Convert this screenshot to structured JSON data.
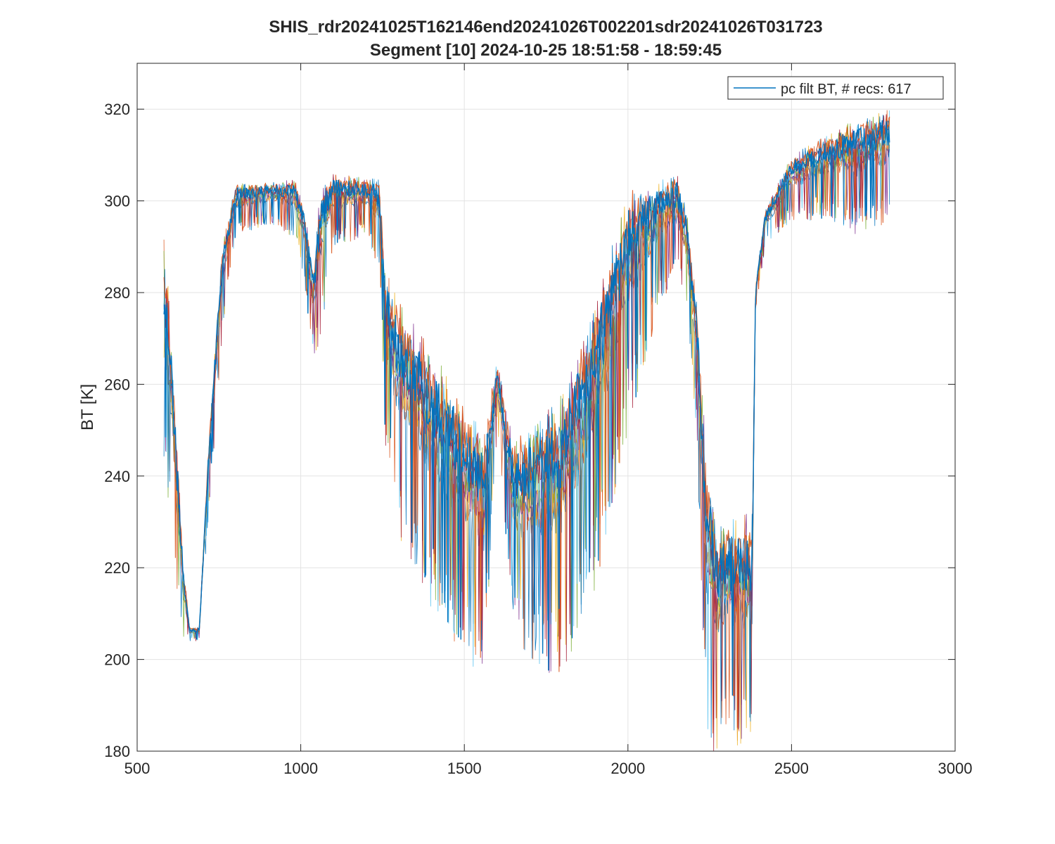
{
  "chart_data": {
    "type": "line",
    "title": "SHIS_rdr20241025T162146end20241026T002201sdr20241026T031723",
    "subtitle": "Segment [10] 2024-10-25 18:51:58 - 18:59:45",
    "xlabel": "",
    "ylabel": "BT [K]",
    "xlim": [
      500,
      3000
    ],
    "ylim": [
      180,
      330
    ],
    "xticks": [
      "500",
      "1000",
      "1500",
      "2000",
      "2500",
      "3000"
    ],
    "yticks": [
      "180",
      "200",
      "220",
      "240",
      "260",
      "280",
      "300",
      "320"
    ],
    "grid": true,
    "legend": {
      "position": "top-right",
      "entries": [
        "pc filt BT, # recs:  617"
      ]
    },
    "series_colors": [
      "#0072BD",
      "#D95319",
      "#EDB120",
      "#7E2F8E",
      "#77AC30",
      "#4DBEEE",
      "#A2142F"
    ],
    "series": [
      {
        "envelope": "upper",
        "x": [
          582,
          590,
          600,
          620,
          640,
          660,
          690,
          720,
          760,
          800,
          900,
          980,
          1010,
          1040,
          1060,
          1100,
          1200,
          1240,
          1260,
          1300,
          1400,
          1500,
          1560,
          1600,
          1650,
          1700,
          1800,
          1900,
          2000,
          2100,
          2150,
          2180,
          2210,
          2240,
          2270,
          2300,
          2380,
          2390,
          2420,
          2500,
          2600,
          2700,
          2800
        ],
        "y": [
          292,
          288,
          275,
          250,
          222,
          207,
          207,
          250,
          290,
          304,
          304,
          305,
          299,
          284,
          304,
          306,
          305,
          305,
          285,
          278,
          268,
          256,
          250,
          265,
          248,
          250,
          258,
          278,
          302,
          305,
          306,
          298,
          278,
          245,
          228,
          231,
          232,
          282,
          298,
          310,
          314,
          318,
          320
        ]
      },
      {
        "envelope": "lower",
        "x": [
          582,
          590,
          600,
          620,
          640,
          660,
          690,
          720,
          760,
          800,
          900,
          980,
          1010,
          1040,
          1060,
          1100,
          1200,
          1240,
          1260,
          1300,
          1400,
          1500,
          1560,
          1600,
          1650,
          1700,
          1800,
          1900,
          2000,
          2100,
          2150,
          2180,
          2210,
          2240,
          2270,
          2300,
          2380,
          2390,
          2420,
          2500,
          2600,
          2700,
          2800
        ],
        "y": [
          230,
          232,
          235,
          215,
          205,
          204,
          204,
          232,
          270,
          292,
          295,
          292,
          282,
          265,
          270,
          290,
          292,
          285,
          245,
          225,
          210,
          200,
          195,
          250,
          205,
          200,
          195,
          215,
          250,
          278,
          283,
          275,
          250,
          180,
          180,
          180,
          180,
          276,
          290,
          295,
          296,
          292,
          295
        ]
      }
    ]
  }
}
